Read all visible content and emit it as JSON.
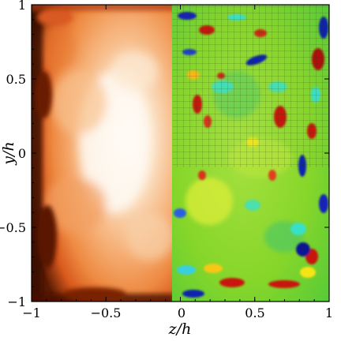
{
  "figure": {
    "xlabel": "z/h",
    "ylabel": "y/h",
    "xlim": [
      -1,
      1
    ],
    "ylim": [
      -1,
      1
    ],
    "x_ticks": [
      "−1",
      "−0.5",
      "0",
      "0.5",
      "1"
    ],
    "y_ticks": [
      "1",
      "0.5",
      "0",
      "−0.5",
      "−1"
    ],
    "left_panel": {
      "field": "mean-temperature-like",
      "colormap": "black-red-orange-white"
    },
    "right_panel": {
      "field": "fluctuation-like",
      "colormap": "blue-cyan-green-yellow-red",
      "grid_overlay": "upper-half"
    }
  },
  "colors": {
    "hot_center": "#fffaf2",
    "hot_mid": "#f6a060",
    "hot_edge": "#d2501a",
    "hot_dark": "#2a0a00",
    "jet_green": "#7ed321",
    "jet_cyan": "#38e0c8",
    "jet_blue": "#1020b0",
    "jet_red": "#c81810",
    "jet_yellow": "#f6e418"
  }
}
